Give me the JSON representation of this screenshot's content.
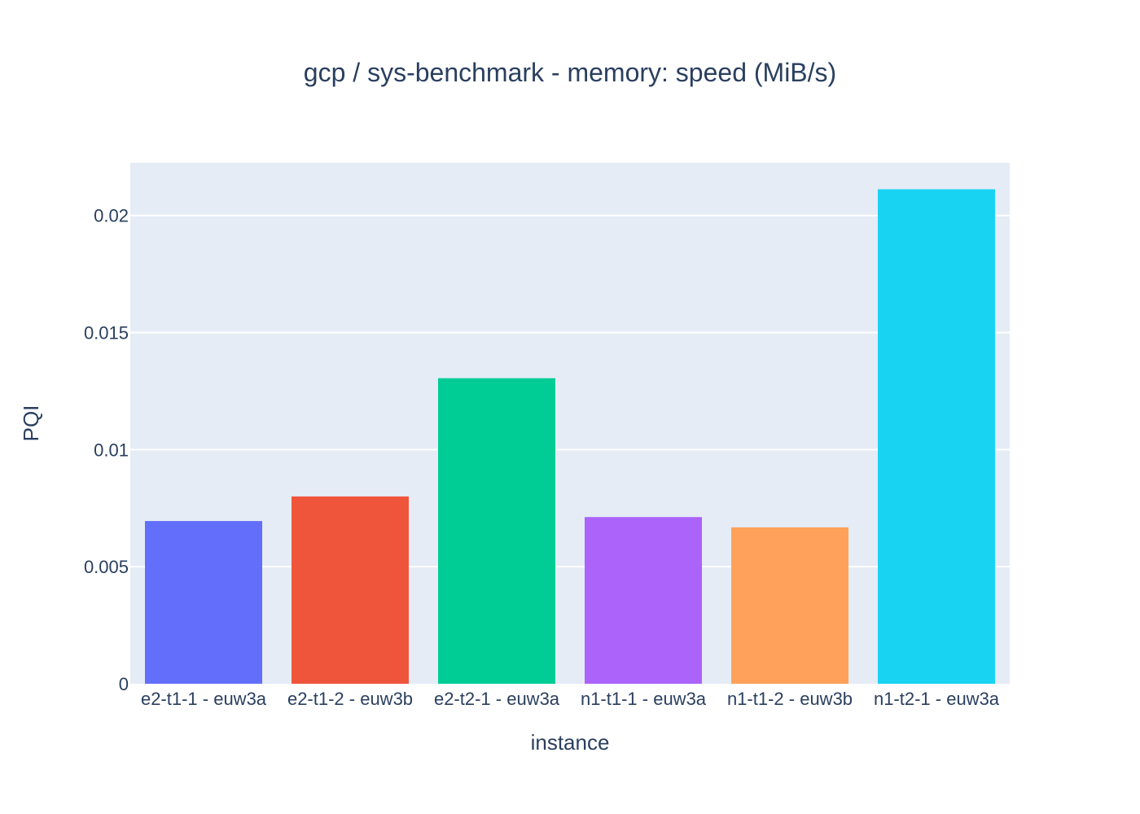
{
  "chart_data": {
    "type": "bar",
    "title": "gcp / sys-benchmark - memory: speed (MiB/s)",
    "xlabel": "instance",
    "ylabel": "PQI",
    "categories": [
      "e2-t1-1 - euw3a",
      "e2-t1-2 - euw3b",
      "e2-t2-1 - euw3a",
      "n1-t1-1 - euw3a",
      "n1-t1-2 - euw3b",
      "n1-t2-1 - euw3a"
    ],
    "values": [
      0.00695,
      0.008,
      0.01305,
      0.00712,
      0.00668,
      0.02112
    ],
    "colors": [
      "#636efa",
      "#ef553b",
      "#00cc96",
      "#ab63fa",
      "#ffa15a",
      "#19d3f3"
    ],
    "ylim": [
      0,
      0.02225
    ],
    "yticks": [
      0,
      0.005,
      0.01,
      0.015,
      0.02
    ],
    "ytick_labels": [
      "0",
      "0.005",
      "0.01",
      "0.015",
      "0.02"
    ],
    "grid": true,
    "legend": "none",
    "plot_background": "#e5ecf6"
  }
}
